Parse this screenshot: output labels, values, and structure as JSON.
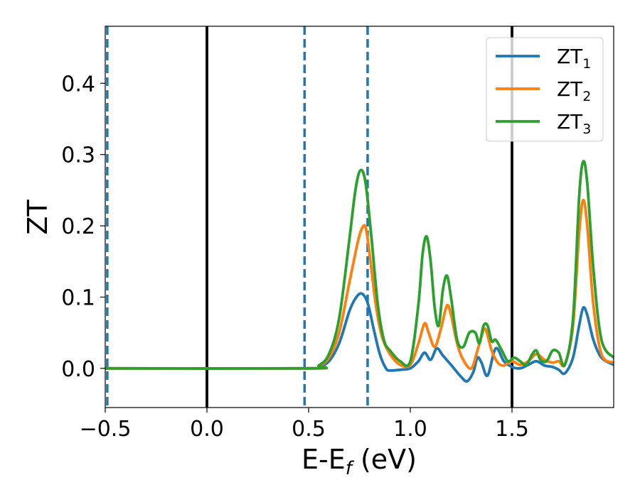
{
  "chart_data": {
    "type": "line",
    "title": "",
    "xlabel": {
      "main": "E-E",
      "sub": "f",
      "suffix": " (eV)"
    },
    "ylabel": "ZT",
    "xlim": [
      -0.5,
      2.0
    ],
    "ylim": [
      -0.055,
      0.48
    ],
    "x_ticks": [
      -0.5,
      0.0,
      0.5,
      1.0,
      1.5
    ],
    "x_tick_labels": [
      "−0.5",
      "0.0",
      "0.5",
      "1.0",
      "1.5"
    ],
    "y_ticks": [
      0.0,
      0.1,
      0.2,
      0.3,
      0.4
    ],
    "y_tick_labels": [
      "0.0",
      "0.1",
      "0.2",
      "0.3",
      "0.4"
    ],
    "grid": false,
    "legend_position": "top-right",
    "vertical_lines": [
      {
        "x": -0.49,
        "style": "dashed",
        "color": "#1f77b4"
      },
      {
        "x": 0.0,
        "style": "solid",
        "color": "#000000"
      },
      {
        "x": 0.48,
        "style": "dashed",
        "color": "#1f77b4"
      },
      {
        "x": 0.79,
        "style": "dashed",
        "color": "#1f77b4"
      },
      {
        "x": 1.5,
        "style": "solid",
        "color": "#000000"
      }
    ],
    "series": [
      {
        "name": "ZT",
        "sub": "1",
        "color": "#1f77b4",
        "x": [
          -0.5,
          0.5,
          0.55,
          0.6,
          0.65,
          0.7,
          0.73,
          0.76,
          0.79,
          0.82,
          0.85,
          0.88,
          0.9,
          0.95,
          1.0,
          1.04,
          1.07,
          1.1,
          1.13,
          1.16,
          1.2,
          1.25,
          1.28,
          1.31,
          1.33,
          1.35,
          1.38,
          1.42,
          1.46,
          1.5,
          1.54,
          1.58,
          1.62,
          1.66,
          1.7,
          1.73,
          1.76,
          1.8,
          1.83,
          1.85,
          1.87,
          1.9,
          1.94,
          2.0
        ],
        "y": [
          0.0,
          0.0,
          0.002,
          0.01,
          0.035,
          0.08,
          0.098,
          0.105,
          0.092,
          0.055,
          0.02,
          0.0,
          -0.003,
          -0.002,
          0.0,
          0.01,
          0.022,
          0.012,
          0.028,
          0.018,
          0.005,
          -0.012,
          -0.018,
          -0.005,
          0.015,
          0.008,
          -0.01,
          0.028,
          0.01,
          0.002,
          0.0,
          0.005,
          0.01,
          0.004,
          0.002,
          -0.002,
          -0.007,
          0.015,
          0.06,
          0.085,
          0.075,
          0.04,
          0.015,
          0.005
        ]
      },
      {
        "name": "ZT",
        "sub": "2",
        "color": "#ff7f0e",
        "x": [
          -0.5,
          0.5,
          0.55,
          0.6,
          0.65,
          0.7,
          0.74,
          0.76,
          0.78,
          0.8,
          0.83,
          0.86,
          0.9,
          0.95,
          1.0,
          1.04,
          1.07,
          1.09,
          1.12,
          1.15,
          1.18,
          1.2,
          1.23,
          1.26,
          1.3,
          1.33,
          1.35,
          1.37,
          1.4,
          1.43,
          1.46,
          1.5,
          1.54,
          1.58,
          1.62,
          1.66,
          1.7,
          1.73,
          1.76,
          1.8,
          1.83,
          1.85,
          1.87,
          1.9,
          1.94,
          2.0
        ],
        "y": [
          0.0,
          0.0,
          0.003,
          0.015,
          0.05,
          0.12,
          0.175,
          0.195,
          0.198,
          0.16,
          0.09,
          0.045,
          0.02,
          0.005,
          0.005,
          0.035,
          0.063,
          0.05,
          0.03,
          0.055,
          0.088,
          0.075,
          0.035,
          0.012,
          0.0,
          0.025,
          0.045,
          0.055,
          0.025,
          0.008,
          0.004,
          0.01,
          0.005,
          0.01,
          0.02,
          0.012,
          0.008,
          0.01,
          0.006,
          0.06,
          0.19,
          0.236,
          0.2,
          0.09,
          0.02,
          0.008
        ]
      },
      {
        "name": "ZT",
        "sub": "3",
        "color": "#2ca02c",
        "x": [
          -0.5,
          0.5,
          0.55,
          0.6,
          0.65,
          0.7,
          0.73,
          0.755,
          0.78,
          0.81,
          0.84,
          0.87,
          0.9,
          0.95,
          1.0,
          1.04,
          1.06,
          1.08,
          1.1,
          1.12,
          1.14,
          1.16,
          1.18,
          1.2,
          1.23,
          1.26,
          1.29,
          1.32,
          1.34,
          1.36,
          1.38,
          1.4,
          1.42,
          1.45,
          1.48,
          1.51,
          1.54,
          1.57,
          1.6,
          1.62,
          1.64,
          1.67,
          1.7,
          1.73,
          1.76,
          1.8,
          1.83,
          1.85,
          1.87,
          1.9,
          1.94,
          2.0
        ],
        "y": [
          0.0,
          0.0,
          0.004,
          0.02,
          0.07,
          0.18,
          0.25,
          0.278,
          0.26,
          0.18,
          0.09,
          0.04,
          0.025,
          0.01,
          0.01,
          0.09,
          0.16,
          0.185,
          0.15,
          0.085,
          0.06,
          0.11,
          0.13,
          0.1,
          0.04,
          0.03,
          0.05,
          0.05,
          0.035,
          0.06,
          0.06,
          0.038,
          0.04,
          0.025,
          0.01,
          0.015,
          0.01,
          0.005,
          0.02,
          0.025,
          0.012,
          0.01,
          0.025,
          0.022,
          0.005,
          0.07,
          0.24,
          0.29,
          0.26,
          0.14,
          0.04,
          0.015
        ]
      }
    ]
  }
}
